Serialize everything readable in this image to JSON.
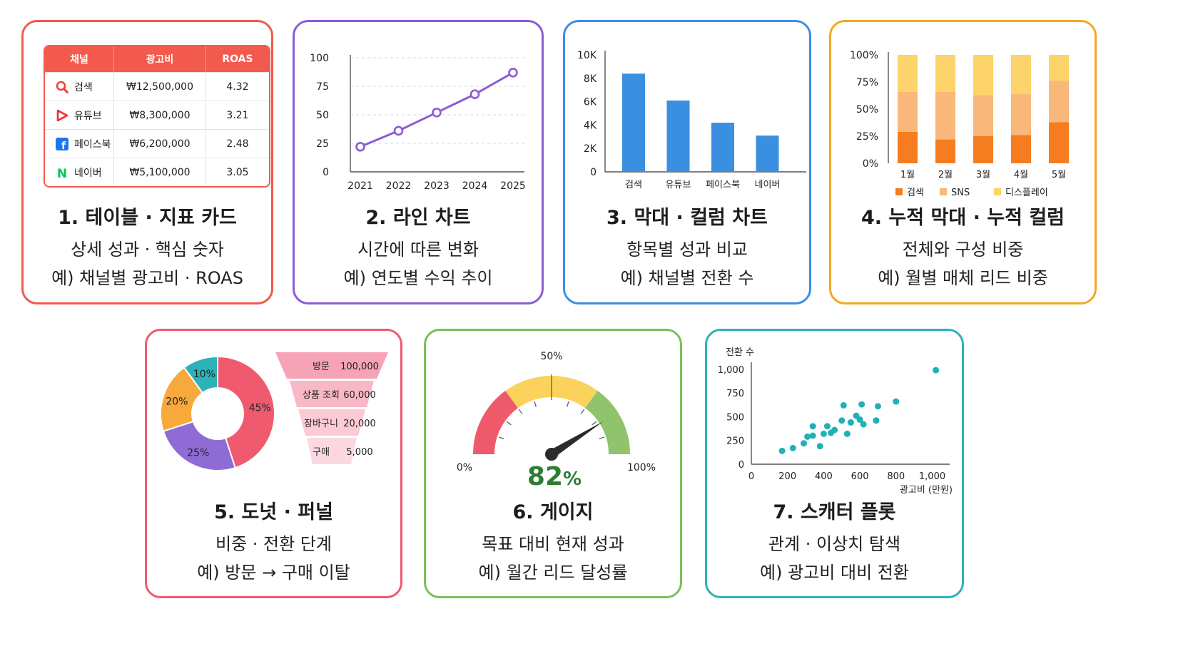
{
  "cards": [
    {
      "id": "table",
      "color": "#f25a4d",
      "title": "1. 테이블 · 지표 카드",
      "line1": "상세 성과 · 핵심 숫자",
      "line2": "예) 채널별 광고비 · ROAS"
    },
    {
      "id": "line",
      "color": "#8b5cd6",
      "title": "2. 라인 차트",
      "line1": "시간에 따른 변화",
      "line2": "예) 연도별 수익 추이"
    },
    {
      "id": "bar",
      "color": "#3b8fe0",
      "title": "3. 막대 · 컬럼 차트",
      "line1": "항목별 성과 비교",
      "line2": "예) 채널별 전환 수"
    },
    {
      "id": "stacked",
      "color": "#f5a623",
      "title": "4. 누적 막대 · 누적 컬럼",
      "line1": "전체와 구성 비중",
      "line2": "예) 월별 매체 리드 비중"
    },
    {
      "id": "donut",
      "color": "#ef5a73",
      "title": "5. 도넛 · 퍼널",
      "line1": "비중 · 전환 단계",
      "line2": "예) 방문 → 구매 이탈"
    },
    {
      "id": "gauge",
      "color": "#7bbf5a",
      "title": "6. 게이지",
      "line1": "목표 대비 현재 성과",
      "line2": "예) 월간 리드 달성률"
    },
    {
      "id": "scatter",
      "color": "#2bb3b8",
      "title": "7. 스캐터 플롯",
      "line1": "관계 · 이상치 탐색",
      "line2": "예) 광고비 대비 전환"
    }
  ],
  "table": {
    "headers": [
      "채널",
      "광고비",
      "ROAS"
    ],
    "rows": [
      {
        "icon": "search-icon",
        "channel": "검색",
        "spend": "₩12,500,000",
        "roas": "4.32"
      },
      {
        "icon": "youtube-icon",
        "channel": "유튜브",
        "spend": "₩8,300,000",
        "roas": "3.21"
      },
      {
        "icon": "facebook-icon",
        "channel": "페이스북",
        "spend": "₩6,200,000",
        "roas": "2.48"
      },
      {
        "icon": "naver-icon",
        "channel": "네이버",
        "spend": "₩5,100,000",
        "roas": "3.05"
      }
    ]
  },
  "chart_data": [
    {
      "type": "line",
      "x": [
        "2021",
        "2022",
        "2023",
        "2024",
        "2025"
      ],
      "values": [
        22,
        36,
        52,
        68,
        87
      ],
      "yticks": [
        "0",
        "25",
        "50",
        "75",
        "100"
      ],
      "ylim": [
        0,
        100
      ],
      "color": "#8b5cd6",
      "grid": true
    },
    {
      "type": "bar",
      "categories": [
        "검색",
        "유튜브",
        "페이스북",
        "네이버"
      ],
      "values": [
        8400,
        6100,
        4200,
        3100
      ],
      "yticks": [
        "0",
        "2K",
        "4K",
        "6K",
        "8K",
        "10K"
      ],
      "ylim": [
        0,
        10000
      ],
      "color": "#3b8fe0"
    },
    {
      "type": "bar",
      "stacked": true,
      "categories": [
        "1월",
        "2월",
        "3월",
        "4월",
        "5월"
      ],
      "yticks": [
        "0%",
        "25%",
        "50%",
        "75%",
        "100%"
      ],
      "ylim": [
        0,
        100
      ],
      "series": [
        {
          "name": "검색",
          "color": "#f57c1f",
          "values": [
            29,
            22,
            25,
            26,
            38
          ]
        },
        {
          "name": "SNS",
          "color": "#f9b77a",
          "values": [
            37,
            44,
            38,
            38,
            38
          ]
        },
        {
          "name": "디스플레이",
          "color": "#fdd36b",
          "values": [
            34,
            34,
            37,
            36,
            24
          ]
        }
      ],
      "legend": "bottom"
    },
    {
      "type": "pie",
      "donut": true,
      "slices": [
        {
          "label": "45%",
          "value": 45,
          "color": "#ef5a6f"
        },
        {
          "label": "25%",
          "value": 25,
          "color": "#8f6bd6"
        },
        {
          "label": "20%",
          "value": 20,
          "color": "#f7a93b"
        },
        {
          "label": "10%",
          "value": 10,
          "color": "#2bb3b8"
        }
      ]
    },
    {
      "type": "funnel",
      "stages": [
        {
          "label": "방문",
          "value": "100,000",
          "color": "#f7a3b6"
        },
        {
          "label": "상품 조회",
          "value": "60,000",
          "color": "#f9b8c6"
        },
        {
          "label": "장바구니",
          "value": "20,000",
          "color": "#fbcad5"
        },
        {
          "label": "구매",
          "value": "5,000",
          "color": "#fcd9e1"
        }
      ]
    },
    {
      "type": "gauge",
      "value": 82,
      "display": "82",
      "unit": "%",
      "min_label": "0%",
      "mid_label": "50%",
      "max_label": "100%",
      "bands": [
        {
          "from": 0,
          "to": 30,
          "color": "#ef5a6a"
        },
        {
          "from": 30,
          "to": 70,
          "color": "#fbd35c"
        },
        {
          "from": 70,
          "to": 100,
          "color": "#8fc46c"
        }
      ],
      "value_color": "#2e7d32"
    },
    {
      "type": "scatter",
      "xlabel": "광고비 (만원)",
      "ylabel": "전환 수",
      "xlim": [
        0,
        1100
      ],
      "ylim": [
        0,
        1000
      ],
      "xticks": [
        "0",
        "200",
        "400",
        "600",
        "800",
        "1,000"
      ],
      "yticks": [
        "0",
        "250",
        "500",
        "750",
        "1,000"
      ],
      "color": "#1fb1b6",
      "points": [
        [
          170,
          140
        ],
        [
          230,
          170
        ],
        [
          290,
          220
        ],
        [
          310,
          290
        ],
        [
          340,
          300
        ],
        [
          340,
          400
        ],
        [
          380,
          190
        ],
        [
          400,
          320
        ],
        [
          420,
          400
        ],
        [
          440,
          330
        ],
        [
          460,
          360
        ],
        [
          500,
          460
        ],
        [
          510,
          620
        ],
        [
          530,
          320
        ],
        [
          550,
          440
        ],
        [
          580,
          510
        ],
        [
          600,
          470
        ],
        [
          610,
          630
        ],
        [
          620,
          420
        ],
        [
          690,
          460
        ],
        [
          700,
          610
        ],
        [
          800,
          660
        ],
        [
          1020,
          990
        ]
      ]
    }
  ]
}
